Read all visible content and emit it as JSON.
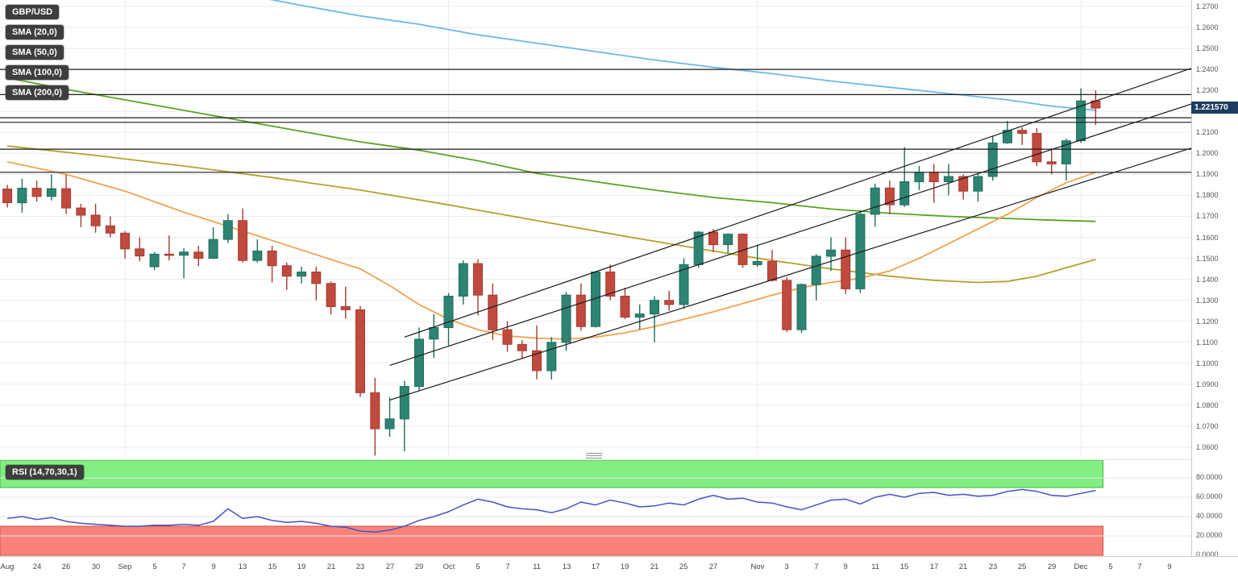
{
  "symbol": "GBP/USD",
  "legend": {
    "items": [
      {
        "label": "GBP/USD"
      },
      {
        "label": "SMA (20,0)"
      },
      {
        "label": "SMA (50,0)"
      },
      {
        "label": "SMA (100,0)"
      },
      {
        "label": "SMA (200,0)"
      }
    ]
  },
  "rsi_badge_label": "RSI (14,70,30,1)",
  "current_price": "1.221570",
  "chart_data": [
    {
      "type": "candlestick",
      "title": "GBP/USD daily candlestick chart with SMA 20/50/100/200 overlays, horizontal levels and ascending trend channel",
      "y_axis": {
        "min": 1.06,
        "max": 1.27,
        "tick_step": 0.01,
        "tick_labels": [
          "1.2700",
          "1.2600",
          "1.2500",
          "1.2400",
          "1.2300",
          "1.2200",
          "1.2100",
          "1.2000",
          "1.1900",
          "1.1800",
          "1.1700",
          "1.1600",
          "1.1500",
          "1.1400",
          "1.1300",
          "1.1200",
          "1.1100",
          "1.1000",
          "1.0900",
          "1.0800",
          "1.0700",
          "1.0600"
        ]
      },
      "x_ticks": [
        [
          "Aug",
          0
        ],
        [
          "24",
          2
        ],
        [
          "26",
          4
        ],
        [
          "30",
          6
        ],
        [
          "Sep",
          8
        ],
        [
          "5",
          10
        ],
        [
          "7",
          12
        ],
        [
          "9",
          14
        ],
        [
          "13",
          16
        ],
        [
          "15",
          18
        ],
        [
          "19",
          20
        ],
        [
          "21",
          22
        ],
        [
          "23",
          24
        ],
        [
          "27",
          26
        ],
        [
          "29",
          28
        ],
        [
          "Oct",
          30
        ],
        [
          "5",
          32
        ],
        [
          "7",
          34
        ],
        [
          "11",
          36
        ],
        [
          "13",
          38
        ],
        [
          "17",
          40
        ],
        [
          "19",
          42
        ],
        [
          "21",
          44
        ],
        [
          "25",
          46
        ],
        [
          "27",
          48
        ],
        [
          "Nov",
          51
        ],
        [
          "3",
          53
        ],
        [
          "7",
          55
        ],
        [
          "9",
          57
        ],
        [
          "11",
          59
        ],
        [
          "15",
          61
        ],
        [
          "17",
          63
        ],
        [
          "21",
          65
        ],
        [
          "23",
          67
        ],
        [
          "25",
          69
        ],
        [
          "29",
          71
        ],
        [
          "Dec",
          73
        ],
        [
          "5",
          75
        ],
        [
          "7",
          77
        ],
        [
          "9",
          79
        ]
      ],
      "month_gridline_slots": [
        8,
        30,
        51,
        73
      ],
      "colors": {
        "up": "#2e8472",
        "up_border": "#1f6e5c",
        "down": "#c14a3e",
        "down_border": "#a53c31"
      },
      "candles": [
        [
          1.183,
          1.185,
          1.1742,
          1.1765
        ],
        [
          1.1765,
          1.188,
          1.1718,
          1.1834
        ],
        [
          1.1834,
          1.187,
          1.177,
          1.1795
        ],
        [
          1.1795,
          1.19,
          1.1775,
          1.1832
        ],
        [
          1.1832,
          1.19,
          1.1711,
          1.174
        ],
        [
          1.174,
          1.176,
          1.1649,
          1.1706
        ],
        [
          1.1706,
          1.176,
          1.1622,
          1.1655
        ],
        [
          1.1655,
          1.17,
          1.16,
          1.162
        ],
        [
          1.162,
          1.163,
          1.1499,
          1.1545
        ],
        [
          1.1545,
          1.16,
          1.1486,
          1.1511
        ],
        [
          1.146,
          1.153,
          1.1444,
          1.152
        ],
        [
          1.152,
          1.1609,
          1.149,
          1.1515
        ],
        [
          1.1515,
          1.1548,
          1.1405,
          1.153
        ],
        [
          1.153,
          1.156,
          1.1462,
          1.15
        ],
        [
          1.15,
          1.1648,
          1.1498,
          1.159
        ],
        [
          1.159,
          1.171,
          1.1573,
          1.168
        ],
        [
          1.168,
          1.1738,
          1.148,
          1.149
        ],
        [
          1.149,
          1.159,
          1.148,
          1.1535
        ],
        [
          1.1535,
          1.156,
          1.1385,
          1.1465
        ],
        [
          1.1465,
          1.148,
          1.135,
          1.1415
        ],
        [
          1.1415,
          1.146,
          1.138,
          1.1435
        ],
        [
          1.1435,
          1.146,
          1.13,
          1.138
        ],
        [
          1.138,
          1.139,
          1.1233,
          1.127
        ],
        [
          1.127,
          1.1365,
          1.1212,
          1.1255
        ],
        [
          1.1255,
          1.1273,
          1.084,
          1.086
        ],
        [
          1.086,
          1.093,
          1.056,
          1.0688
        ],
        [
          1.0688,
          1.0838,
          1.065,
          1.0735
        ],
        [
          1.0735,
          1.0916,
          1.058,
          1.089
        ],
        [
          1.089,
          1.117,
          1.087,
          1.1115
        ],
        [
          1.1115,
          1.1235,
          1.1025,
          1.117
        ],
        [
          1.117,
          1.1335,
          1.1085,
          1.132
        ],
        [
          1.132,
          1.149,
          1.128,
          1.1475
        ],
        [
          1.1475,
          1.1495,
          1.1228,
          1.1325
        ],
        [
          1.1325,
          1.138,
          1.111,
          1.116
        ],
        [
          1.116,
          1.12,
          1.1055,
          1.109
        ],
        [
          1.109,
          1.111,
          1.1025,
          1.106
        ],
        [
          1.106,
          1.118,
          1.0924,
          1.0965
        ],
        [
          1.0965,
          1.1125,
          1.0923,
          1.11
        ],
        [
          1.11,
          1.134,
          1.106,
          1.1325
        ],
        [
          1.1325,
          1.138,
          1.1155,
          1.1175
        ],
        [
          1.1175,
          1.144,
          1.117,
          1.1435
        ],
        [
          1.1435,
          1.147,
          1.13,
          1.132
        ],
        [
          1.132,
          1.136,
          1.121,
          1.122
        ],
        [
          1.122,
          1.128,
          1.116,
          1.1235
        ],
        [
          1.1235,
          1.132,
          1.11,
          1.13
        ],
        [
          1.13,
          1.1345,
          1.125,
          1.128
        ],
        [
          1.128,
          1.15,
          1.126,
          1.147
        ],
        [
          1.147,
          1.163,
          1.1455,
          1.1625
        ],
        [
          1.1625,
          1.164,
          1.153,
          1.1565
        ],
        [
          1.1565,
          1.162,
          1.1525,
          1.1615
        ],
        [
          1.1615,
          1.162,
          1.1455,
          1.147
        ],
        [
          1.147,
          1.1565,
          1.146,
          1.1485
        ],
        [
          1.1485,
          1.154,
          1.139,
          1.1395
        ],
        [
          1.1395,
          1.141,
          1.115,
          1.116
        ],
        [
          1.116,
          1.138,
          1.1145,
          1.1375
        ],
        [
          1.1375,
          1.152,
          1.13,
          1.151
        ],
        [
          1.151,
          1.16,
          1.144,
          1.154
        ],
        [
          1.154,
          1.16,
          1.133,
          1.1355
        ],
        [
          1.1355,
          1.173,
          1.1335,
          1.171
        ],
        [
          1.171,
          1.1855,
          1.165,
          1.1835
        ],
        [
          1.1835,
          1.187,
          1.171,
          1.1755
        ],
        [
          1.1755,
          1.203,
          1.1745,
          1.1865
        ],
        [
          1.1865,
          1.194,
          1.1825,
          1.191
        ],
        [
          1.191,
          1.195,
          1.1765,
          1.1865
        ],
        [
          1.1865,
          1.195,
          1.18,
          1.189
        ],
        [
          1.189,
          1.19,
          1.178,
          1.182
        ],
        [
          1.182,
          1.1905,
          1.177,
          1.189
        ],
        [
          1.189,
          1.2085,
          1.187,
          1.205
        ],
        [
          1.205,
          1.2155,
          1.2045,
          1.211
        ],
        [
          1.211,
          1.2125,
          1.204,
          1.2095
        ],
        [
          1.2095,
          1.212,
          1.194,
          1.196
        ],
        [
          1.196,
          1.2025,
          1.19,
          1.195
        ],
        [
          1.195,
          1.207,
          1.187,
          1.206
        ],
        [
          1.206,
          1.231,
          1.205,
          1.225
        ],
        [
          1.225,
          1.23,
          1.2135,
          1.2216
        ]
      ],
      "overlays": {
        "sma200": {
          "name": "SMA (200,0)",
          "color": "#6cb9e6",
          "points": [
            [
              17,
              1.2745
            ],
            [
              20,
              1.2705
            ],
            [
              24,
              1.2655
            ],
            [
              28,
              1.2615
            ],
            [
              32,
              1.2565
            ],
            [
              36,
              1.2525
            ],
            [
              40,
              1.2485
            ],
            [
              44,
              1.2445
            ],
            [
              48,
              1.241
            ],
            [
              52,
              1.238
            ],
            [
              56,
              1.2345
            ],
            [
              60,
              1.2315
            ],
            [
              64,
              1.2285
            ],
            [
              68,
              1.2255
            ],
            [
              71,
              1.2225
            ],
            [
              74,
              1.2205
            ]
          ]
        },
        "sma100": {
          "name": "SMA (100,0)",
          "color": "#57a423",
          "points": [
            [
              0,
              1.236
            ],
            [
              4,
              1.2305
            ],
            [
              8,
              1.2255
            ],
            [
              12,
              1.2205
            ],
            [
              16,
              1.2155
            ],
            [
              20,
              1.2105
            ],
            [
              24,
              1.2055
            ],
            [
              28,
              1.2015
            ],
            [
              32,
              1.1965
            ],
            [
              36,
              1.1905
            ],
            [
              40,
              1.1865
            ],
            [
              44,
              1.1825
            ],
            [
              48,
              1.179
            ],
            [
              52,
              1.1765
            ],
            [
              56,
              1.1735
            ],
            [
              60,
              1.1715
            ],
            [
              64,
              1.17
            ],
            [
              68,
              1.169
            ],
            [
              71,
              1.1682
            ],
            [
              74,
              1.1676
            ]
          ]
        },
        "sma50": {
          "name": "SMA (50,0)",
          "color": "#b3a02c",
          "points": [
            [
              0,
              1.2035
            ],
            [
              6,
              1.199
            ],
            [
              12,
              1.194
            ],
            [
              18,
              1.1885
            ],
            [
              24,
              1.1825
            ],
            [
              30,
              1.1755
            ],
            [
              36,
              1.168
            ],
            [
              42,
              1.1605
            ],
            [
              48,
              1.1535
            ],
            [
              52,
              1.149
            ],
            [
              56,
              1.145
            ],
            [
              60,
              1.1415
            ],
            [
              63,
              1.1395
            ],
            [
              66,
              1.1385
            ],
            [
              68,
              1.139
            ],
            [
              70,
              1.1415
            ],
            [
              72,
              1.1455
            ],
            [
              74,
              1.1495
            ]
          ]
        },
        "sma20": {
          "name": "SMA (20,0)",
          "color": "#efa24f",
          "points": [
            [
              0,
              1.196
            ],
            [
              4,
              1.19
            ],
            [
              8,
              1.182
            ],
            [
              12,
              1.172
            ],
            [
              16,
              1.163
            ],
            [
              20,
              1.154
            ],
            [
              24,
              1.145
            ],
            [
              26,
              1.137
            ],
            [
              28,
              1.128
            ],
            [
              30,
              1.121
            ],
            [
              32,
              1.116
            ],
            [
              34,
              1.113
            ],
            [
              36,
              1.112
            ],
            [
              38,
              1.1115
            ],
            [
              40,
              1.1125
            ],
            [
              42,
              1.1145
            ],
            [
              44,
              1.1175
            ],
            [
              46,
              1.121
            ],
            [
              48,
              1.1245
            ],
            [
              50,
              1.1285
            ],
            [
              52,
              1.1325
            ],
            [
              54,
              1.136
            ],
            [
              56,
              1.1385
            ],
            [
              58,
              1.1405
            ],
            [
              60,
              1.144
            ],
            [
              62,
              1.15
            ],
            [
              64,
              1.157
            ],
            [
              66,
              1.164
            ],
            [
              68,
              1.171
            ],
            [
              70,
              1.179
            ],
            [
              72,
              1.186
            ],
            [
              74,
              1.191
            ]
          ]
        }
      },
      "levels": [
        1.24,
        1.228,
        1.217,
        1.2148,
        1.202,
        1.191
      ],
      "trendlines": [
        {
          "s1": 27,
          "p1": 1.1125,
          "s2": 80.5,
          "p2": 1.2405
        },
        {
          "s1": 26,
          "p1": 1.099,
          "s2": 80.5,
          "p2": 1.2235
        },
        {
          "s1": 26,
          "p1": 1.0825,
          "s2": 80.5,
          "p2": 1.2025
        }
      ],
      "last_price": 1.22157
    },
    {
      "type": "line",
      "indicator": "RSI (14,70,30,1)",
      "y_ticks": [
        "80.0000",
        "60.0000",
        "40.0000",
        "20.0000",
        "0.0000"
      ],
      "line_color": "#4353c5",
      "overbought_level": 70,
      "oversold_level": 30,
      "bands": [
        {
          "from": 70,
          "to": 100,
          "fill": "#82ef82",
          "stroke": "#3db53d"
        },
        {
          "from": 0,
          "to": 30,
          "fill": "#f9837b",
          "stroke": "#d24a3e"
        }
      ],
      "values": [
        38,
        40,
        37,
        39,
        35,
        33,
        32,
        31,
        30,
        30,
        31,
        31,
        32,
        31,
        35,
        48,
        38,
        40,
        36,
        34,
        35,
        33,
        30,
        29,
        25,
        24,
        26,
        30,
        36,
        40,
        45,
        52,
        58,
        55,
        50,
        48,
        47,
        44,
        48,
        55,
        52,
        57,
        54,
        50,
        51,
        54,
        52,
        58,
        62,
        58,
        59,
        55,
        54,
        50,
        47,
        52,
        57,
        58,
        53,
        60,
        63,
        60,
        64,
        65,
        62,
        63,
        61,
        62,
        66,
        68,
        66,
        62,
        61,
        64,
        67
      ]
    }
  ]
}
